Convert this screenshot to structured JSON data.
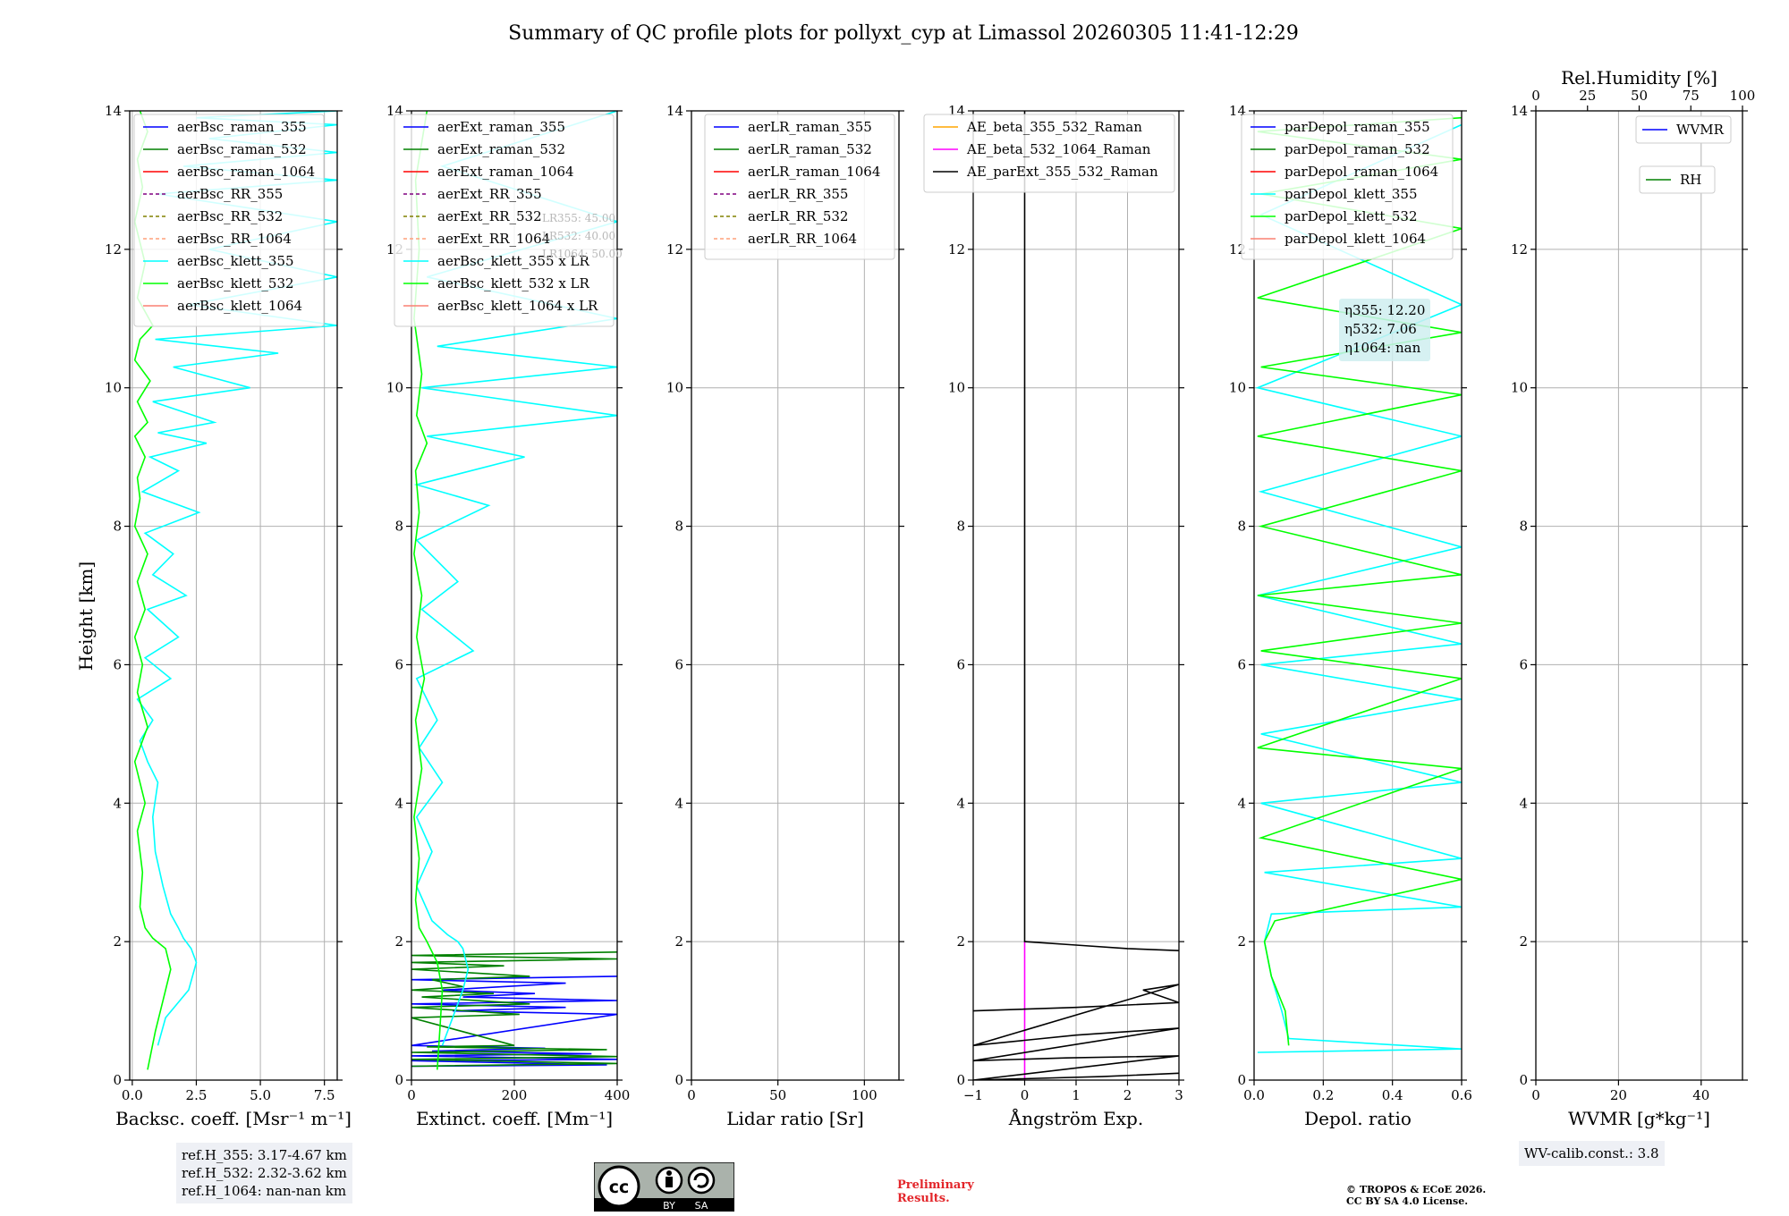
{
  "title": "Summary of QC profile plots for pollyxt_cyp at Limassol 20260305 11:41-12:29",
  "ylabel": "Height [km]",
  "colors": {
    "raman_355": "#0000ff",
    "raman_532": "#008000",
    "raman_1064": "#ff0000",
    "rr_355": "#800080",
    "rr_532": "#808000",
    "rr_1064": "#ffa07a",
    "klett_355": "#00ffff",
    "klett_532": "#00ff00",
    "klett_1064": "#fa8072",
    "ae_1": "#ffa500",
    "ae_2": "#ff00ff",
    "ae_3": "#000000",
    "prelim": "#e3262b"
  },
  "panels": {
    "bsc": {
      "xlabel": "Backsc. coeff. [Msr$^{-1}$ m$^{-1}$]",
      "xlabel_text": "Backsc. coeff. [Msr⁻¹ m⁻¹]",
      "legend": [
        "aerBsc_raman_355",
        "aerBsc_raman_532",
        "aerBsc_raman_1064",
        "aerBsc_RR_355",
        "aerBsc_RR_532",
        "aerBsc_RR_1064",
        "aerBsc_klett_355",
        "aerBsc_klett_532",
        "aerBsc_klett_1064"
      ]
    },
    "ext": {
      "xlabel_text": "Extinct. coeff. [Mm⁻¹]",
      "legend": [
        "aerExt_raman_355",
        "aerExt_raman_532",
        "aerExt_raman_1064",
        "aerExt_RR_355",
        "aerExt_RR_532",
        "aerExt_RR_1064",
        "aerBsc_klett_355 x LR",
        "aerBsc_klett_532 x LR",
        "aerBsc_klett_1064 x LR"
      ],
      "lr_notes": [
        "LR355: 45.00",
        "LR532: 40.00",
        "LR1064: 50.00"
      ]
    },
    "lr": {
      "xlabel_text": "Lidar ratio [Sr]",
      "legend": [
        "aerLR_raman_355",
        "aerLR_raman_532",
        "aerLR_raman_1064",
        "aerLR_RR_355",
        "aerLR_RR_532",
        "aerLR_RR_1064"
      ]
    },
    "ae": {
      "xlabel_text": "Ångström Exp.",
      "legend": [
        "AE_beta_355_532_Raman",
        "AE_beta_532_1064_Raman",
        "AE_parExt_355_532_Raman"
      ]
    },
    "depol": {
      "xlabel_text": "Depol. ratio",
      "legend": [
        "parDepol_raman_355",
        "parDepol_raman_532",
        "parDepol_raman_1064",
        "parDepol_klett_355",
        "parDepol_klett_532",
        "parDepol_klett_1064"
      ],
      "eta": [
        "η355: 12.20",
        "η532: 7.06",
        "η1064: nan"
      ]
    },
    "wv": {
      "xlabel_text": "WVMR [g*kg⁻¹]",
      "top_label": "Rel.Humidity [%]",
      "legend": [
        "WVMR",
        "RH"
      ],
      "calib": "WV-calib.const.: 3.8"
    }
  },
  "refh": {
    "l1": "ref.H_355: 3.17-4.67 km",
    "l2": "ref.H_532: 2.32-3.62 km",
    "l3": "ref.H_1064: nan-nan km"
  },
  "preliminary": {
    "l1": "Preliminary",
    "l2": "Results."
  },
  "copyright": {
    "l1": "© TROPOS & ECoE 2026.",
    "l2": "CC BY SA 4.0 License."
  },
  "cc_badge": {
    "by": "BY",
    "sa": "SA"
  },
  "chart_data": [
    {
      "type": "line",
      "id": "bsc",
      "xlabel": "Backsc. coeff. [Msr⁻¹ m⁻¹]",
      "ylabel": "Height [km]",
      "xlim": [
        -0.1,
        8.0
      ],
      "ylim": [
        0,
        14
      ],
      "xticks": [
        0.0,
        2.5,
        5.0,
        7.5
      ],
      "xticklabels": [
        "0.0",
        "2.5",
        "5.0",
        "7.5"
      ],
      "yticks": [
        0,
        2,
        4,
        6,
        8,
        10,
        12,
        14
      ],
      "grid": true,
      "legend_location": "top",
      "series": [
        {
          "name": "aerBsc_klett_355",
          "color": "#00ffff",
          "x": [
            1.0,
            1.3,
            2.2,
            2.5,
            2.3,
            2.0,
            1.8,
            1.5,
            1.2,
            0.9,
            0.8,
            1.0,
            0.6,
            0.3,
            0.8,
            0.2,
            1.5,
            0.5,
            1.8,
            0.6,
            2.1,
            0.8,
            1.6,
            0.5,
            2.6,
            0.4,
            1.8,
            0.7,
            2.9,
            1.0,
            3.2,
            0.8,
            4.6,
            1.6,
            5.7,
            0.9,
            8.0,
            2.2,
            8.0,
            3.0,
            8.0,
            1.0,
            8.0,
            2.0,
            8.0,
            3.0,
            8.0,
            2.5,
            8.0
          ],
          "y": [
            0.5,
            0.9,
            1.3,
            1.7,
            1.9,
            2.05,
            2.2,
            2.4,
            2.8,
            3.3,
            3.8,
            4.3,
            4.6,
            4.9,
            5.2,
            5.5,
            5.8,
            6.1,
            6.4,
            6.8,
            7.0,
            7.3,
            7.6,
            7.9,
            8.2,
            8.5,
            8.8,
            9.0,
            9.2,
            9.35,
            9.5,
            9.8,
            10.0,
            10.3,
            10.5,
            10.7,
            10.9,
            11.2,
            11.6,
            12.0,
            12.4,
            12.8,
            13.0,
            13.2,
            13.4,
            13.6,
            13.8,
            13.9,
            14.0
          ]
        },
        {
          "name": "aerBsc_klett_532",
          "color": "#00ff00",
          "x": [
            0.6,
            0.9,
            1.3,
            1.5,
            1.3,
            0.8,
            0.5,
            0.3,
            0.4,
            0.2,
            0.5,
            0.1,
            0.6,
            0.2,
            0.4,
            0.1,
            0.5,
            0.2,
            0.6,
            0.1,
            0.3,
            0.2,
            0.5,
            0.1,
            0.6,
            0.2,
            0.7,
            0.1,
            0.3,
            0.8,
            0.2,
            0.5,
            0.1,
            0.4,
            0.2,
            0.6,
            0.3
          ],
          "y": [
            0.15,
            0.7,
            1.3,
            1.6,
            1.9,
            2.05,
            2.2,
            2.5,
            3.0,
            3.6,
            4.0,
            4.6,
            5.1,
            5.6,
            6.0,
            6.4,
            6.8,
            7.2,
            7.6,
            8.0,
            8.4,
            8.7,
            9.0,
            9.3,
            9.5,
            9.8,
            10.1,
            10.4,
            10.7,
            10.9,
            11.3,
            11.8,
            12.4,
            12.9,
            13.3,
            13.7,
            14.0
          ]
        }
      ]
    },
    {
      "type": "line",
      "id": "ext",
      "xlabel": "Extinct. coeff. [Mm⁻¹]",
      "xlim": [
        0,
        400
      ],
      "ylim": [
        0,
        14
      ],
      "xticks": [
        0,
        200,
        400
      ],
      "xticklabels": [
        "0",
        "200",
        "400"
      ],
      "grid": true,
      "series": [
        {
          "name": "aerExt_raman_355",
          "color": "#0000ff",
          "x": [
            0,
            380,
            0,
            400,
            0,
            350,
            40,
            260,
            0,
            400,
            80,
            300,
            0,
            400,
            100,
            240,
            60,
            300,
            0,
            400
          ],
          "y": [
            0.2,
            0.22,
            0.28,
            0.3,
            0.35,
            0.38,
            0.42,
            0.46,
            0.5,
            0.95,
            1.0,
            1.05,
            1.1,
            1.15,
            1.2,
            1.25,
            1.3,
            1.4,
            1.45,
            1.5
          ]
        },
        {
          "name": "aerExt_raman_532",
          "color": "#008000",
          "x": [
            0,
            400,
            0,
            400,
            0,
            380,
            30,
            200,
            0,
            210,
            0,
            230,
            20,
            160,
            0,
            100,
            40,
            230,
            0,
            180,
            0,
            400,
            0,
            400
          ],
          "y": [
            0.2,
            0.24,
            0.3,
            0.34,
            0.4,
            0.44,
            0.48,
            0.5,
            0.9,
            0.95,
            1.05,
            1.1,
            1.2,
            1.25,
            1.3,
            1.35,
            1.45,
            1.5,
            1.6,
            1.65,
            1.7,
            1.75,
            1.8,
            1.85
          ]
        },
        {
          "name": "aerBsc_klett_355 x LR",
          "color": "#00ffff",
          "x": [
            60,
            80,
            100,
            110,
            100,
            90,
            70,
            40,
            10,
            40,
            10,
            60,
            15,
            50,
            10,
            120,
            20,
            90,
            10,
            150,
            10,
            220,
            30,
            400,
            20,
            400,
            50,
            400,
            30,
            400,
            60,
            400
          ],
          "y": [
            0.5,
            0.9,
            1.3,
            1.6,
            1.9,
            2.0,
            2.1,
            2.3,
            2.8,
            3.3,
            3.8,
            4.3,
            4.8,
            5.2,
            5.8,
            6.2,
            6.8,
            7.2,
            7.8,
            8.3,
            8.6,
            9.0,
            9.3,
            9.6,
            10.0,
            10.3,
            10.6,
            11.0,
            11.6,
            12.4,
            13.2,
            14.0
          ]
        },
        {
          "name": "aerBsc_klett_532 x LR",
          "color": "#00ff00",
          "x": [
            50,
            55,
            60,
            50,
            30,
            15,
            8,
            15,
            5,
            20,
            8,
            25,
            10,
            20,
            5,
            15,
            8,
            30,
            10,
            20,
            5,
            15,
            8,
            30
          ],
          "y": [
            0.15,
            0.7,
            1.3,
            1.7,
            2.0,
            2.2,
            2.6,
            3.2,
            3.8,
            4.5,
            5.2,
            5.8,
            6.4,
            7.0,
            7.6,
            8.2,
            8.8,
            9.2,
            9.6,
            10.2,
            11.0,
            12.0,
            13.0,
            14.0
          ]
        }
      ]
    },
    {
      "type": "line",
      "id": "lr",
      "xlabel": "Lidar ratio [Sr]",
      "xlim": [
        0,
        120
      ],
      "ylim": [
        0,
        14
      ],
      "xticks": [
        0,
        50,
        100
      ],
      "xticklabels": [
        "0",
        "50",
        "100"
      ],
      "grid": true,
      "series": []
    },
    {
      "type": "line",
      "id": "ae",
      "xlabel": "Ångström Exp.",
      "xlim": [
        -1,
        3
      ],
      "ylim": [
        0,
        14
      ],
      "xticks": [
        -1,
        0,
        1,
        2,
        3
      ],
      "xticklabels": [
        "−1",
        "0",
        "1",
        "2",
        "3"
      ],
      "grid": true,
      "series": [
        {
          "name": "AE_beta_532_1064_Raman",
          "color": "#ff00ff",
          "x": [
            0,
            0
          ],
          "y": [
            0.0,
            2.0
          ]
        },
        {
          "name": "AE_parExt_355_532_Raman",
          "color": "#000000",
          "x": [
            0,
            0,
            1,
            2,
            3
          ],
          "y": [
            14.0,
            2.0,
            1.95,
            1.9,
            1.87
          ]
        },
        {
          "name": "AE_parExt_355_532_Raman (low)",
          "color": "#000000",
          "x": [
            -1,
            1,
            3,
            2.3,
            3,
            -1,
            1,
            3,
            -1,
            0.8,
            3,
            -1,
            1.5,
            3
          ],
          "y": [
            1.0,
            1.05,
            1.12,
            1.3,
            1.38,
            0.5,
            0.65,
            0.75,
            0.28,
            0.32,
            0.35,
            0.0,
            0.05,
            0.1
          ]
        }
      ]
    },
    {
      "type": "line",
      "id": "depol",
      "xlabel": "Depol. ratio",
      "xlim": [
        0.0,
        0.6
      ],
      "ylim": [
        0,
        14
      ],
      "xticks": [
        0.0,
        0.2,
        0.4,
        0.6
      ],
      "xticklabels": [
        "0.0",
        "0.2",
        "0.4",
        "0.6"
      ],
      "grid": true,
      "series": [
        {
          "name": "parDepol_klett_355",
          "color": "#00ffff",
          "x": [
            0.01,
            0.6,
            0.1,
            0.08,
            0.05,
            0.03,
            0.05,
            0.6,
            0.03,
            0.6,
            0.02,
            0.6,
            0.02,
            0.6,
            0.02,
            0.6,
            0.01,
            0.6,
            0.02,
            0.6,
            0.01,
            0.6,
            0.02,
            0.6
          ],
          "y": [
            0.4,
            0.45,
            0.6,
            1.0,
            1.5,
            2.0,
            2.4,
            2.5,
            3.0,
            3.2,
            4.0,
            4.3,
            5.0,
            5.5,
            6.0,
            6.3,
            7.0,
            7.7,
            8.5,
            9.3,
            10.0,
            11.2,
            12.5,
            13.8
          ]
        },
        {
          "name": "parDepol_klett_532",
          "color": "#00ff00",
          "x": [
            0.1,
            0.09,
            0.05,
            0.03,
            0.06,
            0.6,
            0.02,
            0.6,
            0.01,
            0.6,
            0.02,
            0.6,
            0.01,
            0.6,
            0.02,
            0.6,
            0.01,
            0.6,
            0.02,
            0.6,
            0.01,
            0.6,
            0.02,
            0.6,
            0.01,
            0.6
          ],
          "y": [
            0.5,
            1.0,
            1.5,
            2.0,
            2.3,
            2.9,
            3.5,
            4.5,
            4.8,
            5.8,
            6.2,
            6.6,
            7.0,
            7.3,
            8.0,
            8.8,
            9.3,
            9.9,
            10.3,
            10.8,
            11.3,
            12.3,
            12.8,
            13.3,
            13.7,
            13.9
          ]
        }
      ]
    },
    {
      "type": "line",
      "id": "wv",
      "xlabel": "WVMR [g*kg⁻¹]",
      "xlim": [
        0,
        50
      ],
      "ylim": [
        0,
        14
      ],
      "xticks": [
        0,
        20,
        40
      ],
      "xticklabels": [
        "0",
        "20",
        "40"
      ],
      "top_axis": {
        "label": "Rel.Humidity [%]",
        "xlim": [
          0,
          100
        ],
        "xticks": [
          0,
          25,
          50,
          75,
          100
        ],
        "xticklabels": [
          "0",
          "25",
          "50",
          "75",
          "100"
        ]
      },
      "grid": true,
      "series": []
    }
  ]
}
